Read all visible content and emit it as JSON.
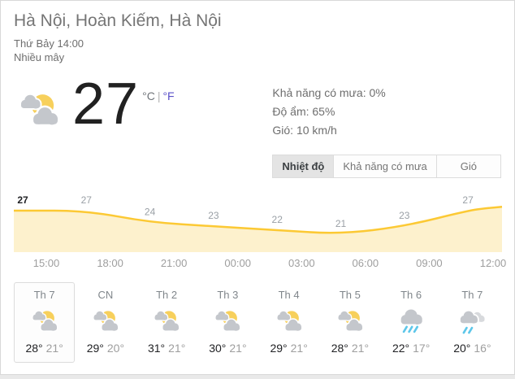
{
  "header": {
    "title": "Hà Nội, Hoàn Kiếm, Hà Nội",
    "subtitle": "Thứ Bảy 14:00",
    "condition": "Nhiều mây"
  },
  "current": {
    "temperature": "27",
    "unit_celsius": "°C",
    "unit_separator": "|",
    "unit_fahrenheit": "°F",
    "icon": "partly-cloudy",
    "stats": {
      "precipitation": "Khả năng có mưa: 0%",
      "humidity": "Độ ẩm: 65%",
      "wind": "Gió: 10 km/h"
    }
  },
  "tabs": [
    {
      "name": "tab-temperature",
      "label": "Nhiệt độ",
      "active": true
    },
    {
      "name": "tab-precipitation",
      "label": "Khả năng có mưa",
      "active": false
    },
    {
      "name": "tab-wind",
      "label": "Gió",
      "active": false
    }
  ],
  "chart_data": {
    "type": "area",
    "series": [
      {
        "name": "Nhiệt độ (°C)",
        "x": [
          "14:00",
          "17:00",
          "20:00",
          "23:00",
          "02:00",
          "05:00",
          "08:00",
          "11:00"
        ],
        "values": [
          27,
          27,
          24,
          23,
          22,
          21,
          23,
          27
        ]
      }
    ],
    "x_ticks": [
      "15:00",
      "18:00",
      "21:00",
      "00:00",
      "03:00",
      "06:00",
      "09:00",
      "12:00"
    ],
    "ylim": [
      18,
      30
    ],
    "grid": false,
    "legend": false,
    "line_color": "#fcc934",
    "fill_color": "#fdf1cd"
  },
  "forecast": {
    "days": [
      {
        "label": "Th 7",
        "icon": "partly-cloudy",
        "high": "28°",
        "low": "21°",
        "selected": true
      },
      {
        "label": "CN",
        "icon": "partly-cloudy",
        "high": "29°",
        "low": "20°",
        "selected": false
      },
      {
        "label": "Th 2",
        "icon": "partly-cloudy",
        "high": "31°",
        "low": "21°",
        "selected": false
      },
      {
        "label": "Th 3",
        "icon": "partly-cloudy",
        "high": "30°",
        "low": "21°",
        "selected": false
      },
      {
        "label": "Th 4",
        "icon": "partly-cloudy",
        "high": "29°",
        "low": "21°",
        "selected": false
      },
      {
        "label": "Th 5",
        "icon": "partly-cloudy",
        "high": "28°",
        "low": "21°",
        "selected": false
      },
      {
        "label": "Th 6",
        "icon": "rain",
        "high": "22°",
        "low": "17°",
        "selected": false
      },
      {
        "label": "Th 7",
        "icon": "showers",
        "high": "20°",
        "low": "16°",
        "selected": false
      }
    ]
  },
  "colors": {
    "sun_yellow": "#f7d05c",
    "cloud_gray": "#c4c7cc",
    "cloud_light": "#d8dadd",
    "rain_blue": "#5ec7ea"
  }
}
